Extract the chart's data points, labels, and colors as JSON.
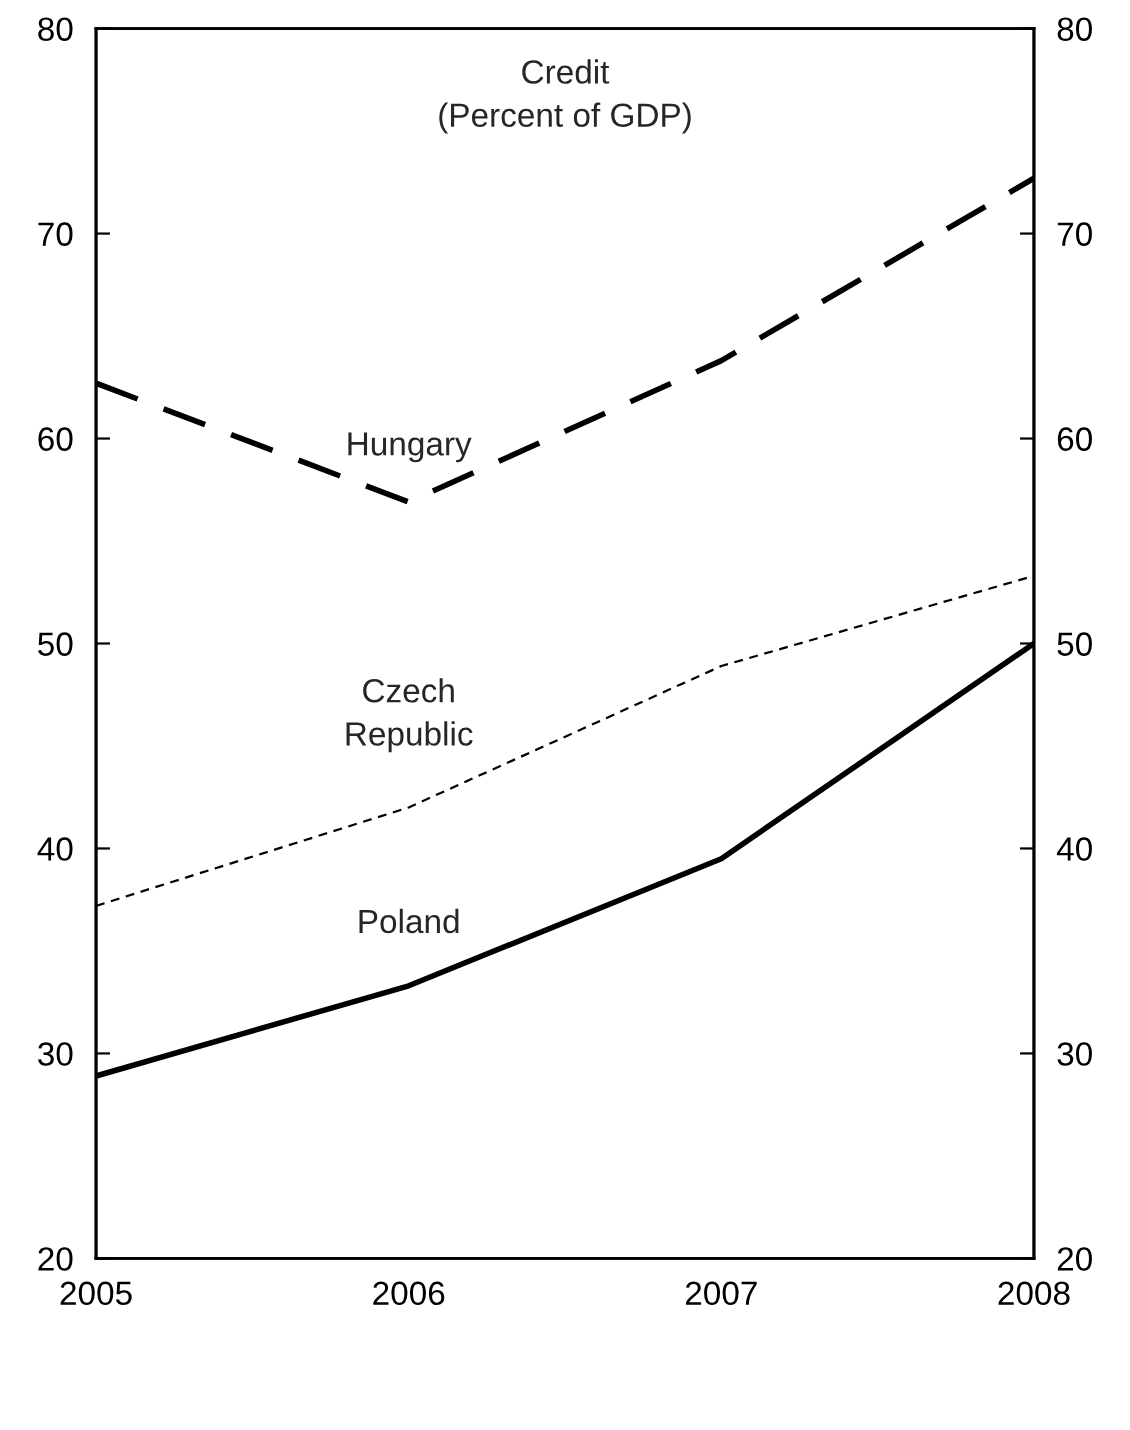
{
  "chart_data": {
    "type": "line",
    "title": "Credit\n(Percent of GDP)",
    "x": [
      2005,
      2006,
      2007,
      2008
    ],
    "xlim": [
      2005,
      2008
    ],
    "xticks": [
      2005,
      2006,
      2007,
      2008
    ],
    "ylim": [
      20,
      80
    ],
    "yticks": [
      20,
      30,
      40,
      50,
      60,
      70,
      80
    ],
    "y2lim": [
      20,
      80
    ],
    "y2ticks": [
      20,
      30,
      40,
      50,
      60,
      70,
      80
    ],
    "grid": false,
    "legend": false,
    "marker": "none",
    "series": [
      {
        "name": "Hungary",
        "color": "#000000",
        "line_style": "dashed",
        "values": [
          62.7,
          56.9,
          63.8,
          72.7
        ]
      },
      {
        "name": "Czech\nRepublic",
        "color": "#000000",
        "line_style": "dashed",
        "values": [
          37.2,
          42.0,
          48.9,
          53.3
        ]
      },
      {
        "name": "Poland",
        "color": "#000000",
        "line_style": "solid",
        "values": [
          28.9,
          33.3,
          39.5,
          50.0
        ]
      }
    ]
  }
}
